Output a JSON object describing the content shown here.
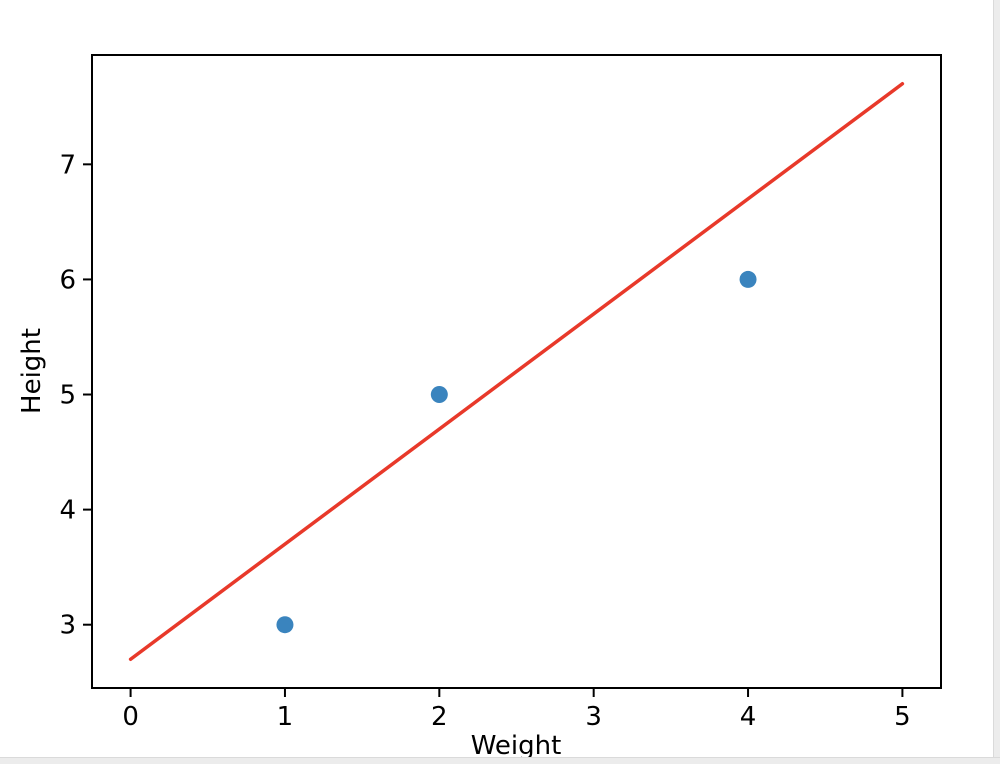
{
  "window": {
    "background": "#ffffff",
    "edge_color": "#ececec"
  },
  "chart_data": {
    "type": "scatter",
    "xlabel": "Weight",
    "ylabel": "Height",
    "points": [
      {
        "x": 1,
        "y": 3
      },
      {
        "x": 2,
        "y": 5
      },
      {
        "x": 4,
        "y": 6
      }
    ],
    "fit_line": {
      "x1": 0,
      "y1": 2.7,
      "x2": 5,
      "y2": 7.7
    },
    "x_ticks": [
      0,
      1,
      2,
      3,
      4,
      5
    ],
    "y_ticks": [
      3,
      4,
      5,
      6,
      7
    ],
    "xlim": [
      -0.25,
      5.25
    ],
    "ylim": [
      2.45,
      7.95
    ],
    "grid": false,
    "legend": "none",
    "point_color": "#3a84be",
    "line_color": "#e8392a",
    "axis_color": "#000000",
    "tick_font_px": 26,
    "label_font_px": 26
  }
}
